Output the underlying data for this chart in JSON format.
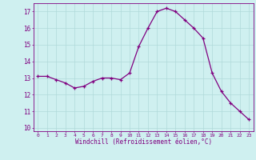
{
  "x": [
    0,
    1,
    2,
    3,
    4,
    5,
    6,
    7,
    8,
    9,
    10,
    11,
    12,
    13,
    14,
    15,
    16,
    17,
    18,
    19,
    20,
    21,
    22,
    23
  ],
  "y": [
    13.1,
    13.1,
    12.9,
    12.7,
    12.4,
    12.5,
    12.8,
    13.0,
    13.0,
    12.9,
    13.3,
    14.9,
    16.0,
    17.0,
    17.2,
    17.0,
    16.5,
    16.0,
    15.4,
    13.3,
    12.2,
    11.5,
    11.0,
    10.5
  ],
  "xlabel": "Windchill (Refroidissement éolien,°C)",
  "ylim": [
    9.8,
    17.5
  ],
  "xlim": [
    -0.5,
    23.5
  ],
  "yticks": [
    10,
    11,
    12,
    13,
    14,
    15,
    16,
    17
  ],
  "xticks": [
    0,
    1,
    2,
    3,
    4,
    5,
    6,
    7,
    8,
    9,
    10,
    11,
    12,
    13,
    14,
    15,
    16,
    17,
    18,
    19,
    20,
    21,
    22,
    23
  ],
  "line_color": "#800080",
  "marker_color": "#800080",
  "bg_color": "#cff0f0",
  "grid_color": "#b0dada"
}
